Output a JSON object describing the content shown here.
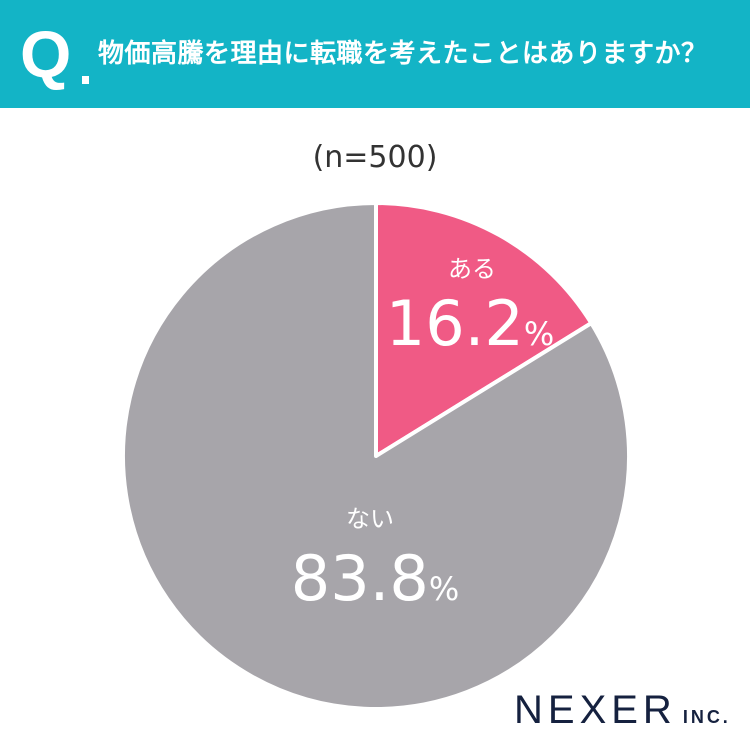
{
  "header": {
    "q_mark": "Q",
    "title": "物価高騰を理由に転職を考えたことはありますか？"
  },
  "sample_label": "(n=500)",
  "brand": {
    "name": "NEXER",
    "suffix": "INC."
  },
  "colors": {
    "header": "#13b4c6",
    "yes": "#f05a85",
    "no": "#a7a5aa"
  },
  "chart_data": {
    "type": "pie",
    "title": "物価高騰を理由に転職を考えたことはありますか？",
    "subtitle": "(n=500)",
    "start": "12 o'clock, clockwise",
    "slices": [
      {
        "label": "ある",
        "value": 16.2,
        "display": "16.2",
        "unit": "%",
        "color": "#f05a85"
      },
      {
        "label": "ない",
        "value": 83.8,
        "display": "83.8",
        "unit": "%",
        "color": "#a7a5aa"
      }
    ]
  }
}
